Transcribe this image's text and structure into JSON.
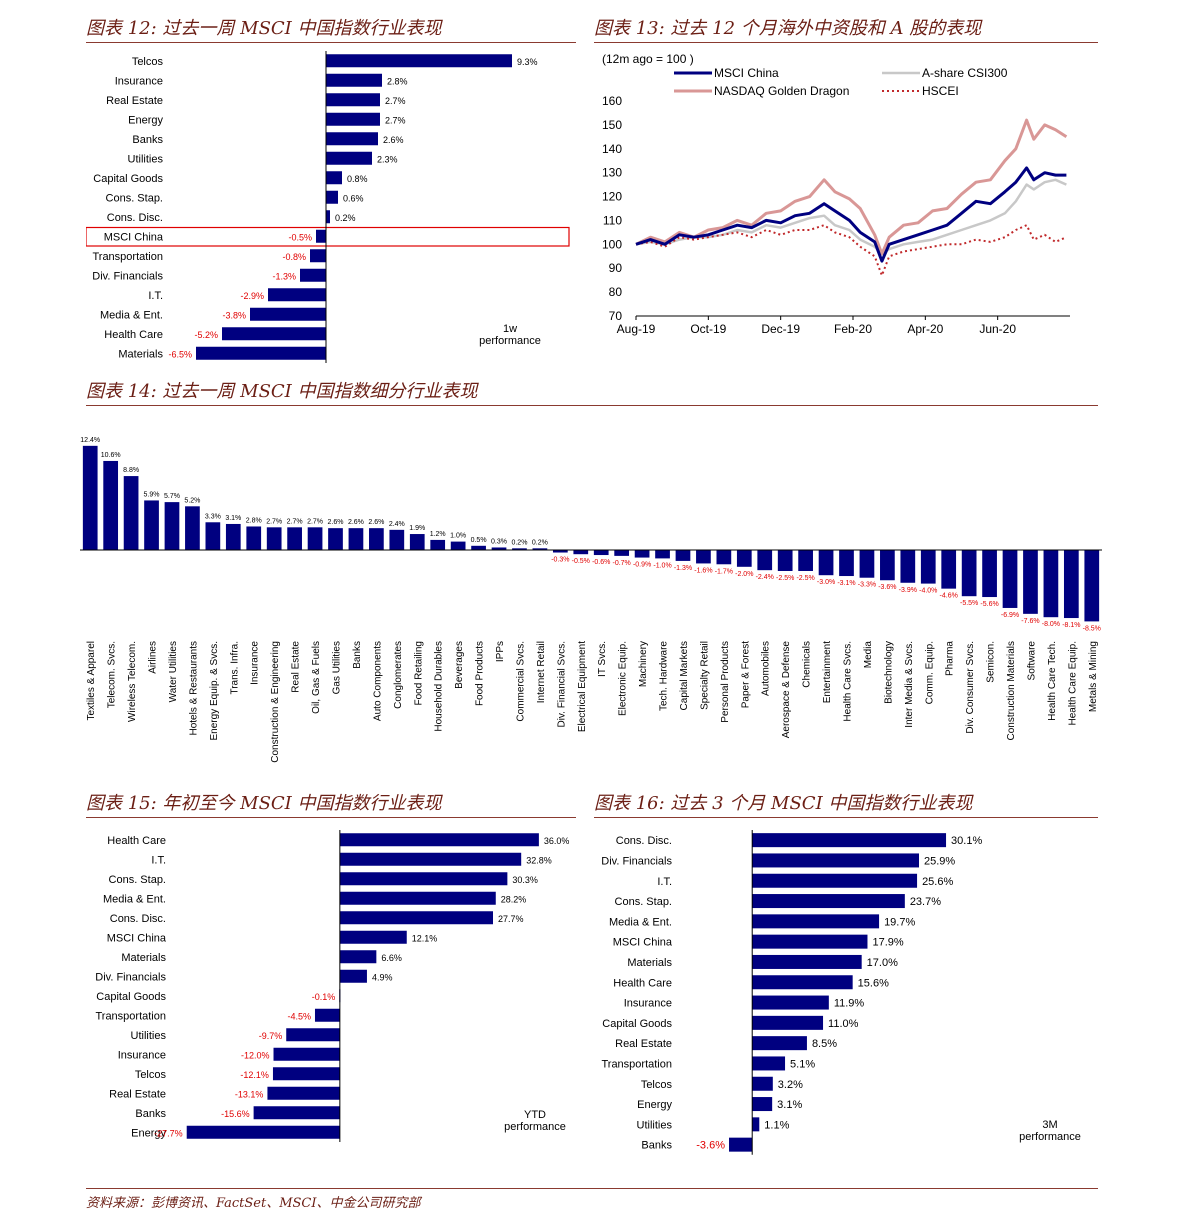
{
  "colors": {
    "bar": "#000080",
    "neg_label": "#e00000",
    "title": "#6b1e14",
    "highlight": "#e00000"
  },
  "titles": {
    "fig12": "图表 12:  过去一周 MSCI  中国指数行业表现",
    "fig13": "图表 13:  过去 12 个月海外中资股和 A 股的表现",
    "fig14": "图表 14:  过去一周 MSCI  中国指数细分行业表现",
    "fig15": "图表 15:  年初至今 MSCI  中国指数行业表现",
    "fig16": "图表 16:  过去 3 个月 MSCI  中国指数行业表现"
  },
  "footer": "资料来源：彭博资讯、FactSet、MSCI、中金公司研究部",
  "chart_data": [
    {
      "id": "fig12",
      "type": "bar",
      "orientation": "horizontal",
      "categories": [
        "Telcos",
        "Insurance",
        "Real Estate",
        "Energy",
        "Banks",
        "Utilities",
        "Capital Goods",
        "Cons. Stap.",
        "Cons. Disc.",
        "MSCI China",
        "Transportation",
        "Div. Financials",
        "I.T.",
        "Media & Ent.",
        "Health Care",
        "Materials"
      ],
      "values": [
        9.3,
        2.8,
        2.7,
        2.7,
        2.6,
        2.3,
        0.8,
        0.6,
        0.2,
        -0.5,
        -0.8,
        -1.3,
        -2.9,
        -3.8,
        -5.2,
        -6.5
      ],
      "labels": [
        "9.3%",
        "2.8%",
        "2.7%",
        "2.7%",
        "2.6%",
        "2.3%",
        "0.8%",
        "0.6%",
        "0.2%",
        "-0.5%",
        "-0.8%",
        "-1.3%",
        "-2.9%",
        "-3.8%",
        "-5.2%",
        "-6.5%"
      ],
      "highlight": "MSCI China",
      "note": [
        "1w",
        "performance"
      ],
      "xlim": [
        -7,
        10
      ]
    },
    {
      "id": "fig13",
      "type": "line",
      "unit_note": "(12m ago   = 100 )",
      "x_ticks": [
        "Aug-19",
        "Oct-19",
        "Dec-19",
        "Feb-20",
        "Apr-20",
        "Jun-20"
      ],
      "y_ticks": [
        70,
        80,
        90,
        100,
        110,
        120,
        130,
        140,
        150,
        160
      ],
      "ylim": [
        70,
        160
      ],
      "x_range_months": [
        0,
        12
      ],
      "series": [
        {
          "name": "MSCI China",
          "color": "#000080",
          "style": "solid",
          "width": 3,
          "points": [
            [
              0,
              100
            ],
            [
              0.4,
              102
            ],
            [
              0.8,
              100
            ],
            [
              1.2,
              104
            ],
            [
              1.6,
              103
            ],
            [
              2,
              104
            ],
            [
              2.4,
              106
            ],
            [
              2.8,
              108
            ],
            [
              3.2,
              107
            ],
            [
              3.6,
              110
            ],
            [
              4,
              109
            ],
            [
              4.4,
              112
            ],
            [
              4.8,
              113
            ],
            [
              5.2,
              117
            ],
            [
              5.5,
              114
            ],
            [
              5.9,
              110
            ],
            [
              6.2,
              105
            ],
            [
              6.6,
              101
            ],
            [
              6.8,
              93
            ],
            [
              7.0,
              100
            ],
            [
              7.4,
              102
            ],
            [
              7.8,
              104
            ],
            [
              8.2,
              106
            ],
            [
              8.6,
              108
            ],
            [
              9.0,
              113
            ],
            [
              9.4,
              118
            ],
            [
              9.8,
              117
            ],
            [
              10.2,
              122
            ],
            [
              10.5,
              126
            ],
            [
              10.8,
              132
            ],
            [
              11.0,
              127
            ],
            [
              11.3,
              130
            ],
            [
              11.6,
              129
            ],
            [
              11.9,
              129
            ]
          ]
        },
        {
          "name": "A-share CSI300",
          "color": "#c8c8c8",
          "style": "solid",
          "width": 2.5,
          "points": [
            [
              0,
              100
            ],
            [
              0.4,
              101
            ],
            [
              0.8,
              100
            ],
            [
              1.2,
              102
            ],
            [
              1.6,
              103
            ],
            [
              2,
              103
            ],
            [
              2.4,
              104
            ],
            [
              2.8,
              106
            ],
            [
              3.2,
              105
            ],
            [
              3.6,
              108
            ],
            [
              4,
              107
            ],
            [
              4.4,
              109
            ],
            [
              4.8,
              111
            ],
            [
              5.2,
              112
            ],
            [
              5.5,
              108
            ],
            [
              5.9,
              106
            ],
            [
              6.2,
              102
            ],
            [
              6.6,
              99
            ],
            [
              6.8,
              96
            ],
            [
              7.0,
              98
            ],
            [
              7.4,
              100
            ],
            [
              7.8,
              101
            ],
            [
              8.2,
              102
            ],
            [
              8.6,
              104
            ],
            [
              9.0,
              106
            ],
            [
              9.4,
              108
            ],
            [
              9.8,
              110
            ],
            [
              10.2,
              113
            ],
            [
              10.5,
              118
            ],
            [
              10.8,
              125
            ],
            [
              11.0,
              123
            ],
            [
              11.3,
              126
            ],
            [
              11.6,
              127
            ],
            [
              11.9,
              125
            ]
          ]
        },
        {
          "name": "NASDAQ Golden Dragon",
          "color": "#d99796",
          "style": "solid",
          "width": 3,
          "points": [
            [
              0,
              100
            ],
            [
              0.4,
              103
            ],
            [
              0.8,
              101
            ],
            [
              1.2,
              105
            ],
            [
              1.6,
              103
            ],
            [
              2,
              106
            ],
            [
              2.4,
              107
            ],
            [
              2.8,
              110
            ],
            [
              3.2,
              108
            ],
            [
              3.6,
              113
            ],
            [
              4,
              114
            ],
            [
              4.4,
              118
            ],
            [
              4.8,
              120
            ],
            [
              5.2,
              127
            ],
            [
              5.5,
              122
            ],
            [
              5.9,
              119
            ],
            [
              6.2,
              115
            ],
            [
              6.6,
              104
            ],
            [
              6.8,
              96
            ],
            [
              7.0,
              103
            ],
            [
              7.4,
              108
            ],
            [
              7.8,
              109
            ],
            [
              8.2,
              114
            ],
            [
              8.6,
              115
            ],
            [
              9.0,
              121
            ],
            [
              9.4,
              126
            ],
            [
              9.8,
              127
            ],
            [
              10.2,
              135
            ],
            [
              10.5,
              140
            ],
            [
              10.8,
              152
            ],
            [
              11.0,
              144
            ],
            [
              11.3,
              150
            ],
            [
              11.6,
              148
            ],
            [
              11.9,
              145
            ]
          ]
        },
        {
          "name": "HSCEI",
          "color": "#c0282a",
          "style": "dotted",
          "width": 2,
          "points": [
            [
              0,
              100
            ],
            [
              0.4,
              101
            ],
            [
              0.8,
              99
            ],
            [
              1.2,
              103
            ],
            [
              1.6,
              102
            ],
            [
              2,
              103
            ],
            [
              2.4,
              104
            ],
            [
              2.8,
              105
            ],
            [
              3.2,
              103
            ],
            [
              3.6,
              106
            ],
            [
              4,
              104
            ],
            [
              4.4,
              106
            ],
            [
              4.8,
              106
            ],
            [
              5.2,
              108
            ],
            [
              5.5,
              105
            ],
            [
              5.9,
              103
            ],
            [
              6.2,
              99
            ],
            [
              6.6,
              95
            ],
            [
              6.8,
              87
            ],
            [
              7.0,
              95
            ],
            [
              7.4,
              97
            ],
            [
              7.8,
              98
            ],
            [
              8.2,
              99
            ],
            [
              8.6,
              100
            ],
            [
              9.0,
              100
            ],
            [
              9.4,
              102
            ],
            [
              9.8,
              101
            ],
            [
              10.2,
              103
            ],
            [
              10.5,
              106
            ],
            [
              10.8,
              108
            ],
            [
              11.0,
              102
            ],
            [
              11.3,
              104
            ],
            [
              11.6,
              101
            ],
            [
              11.9,
              103
            ]
          ]
        }
      ]
    },
    {
      "id": "fig14",
      "type": "bar",
      "orientation": "vertical",
      "categories": [
        "Textiles & Apparel",
        "Telecom. Svcs.",
        "Wireless Telecom.",
        "Airlines",
        "Water Utilities",
        "Hotels & Restaurants",
        "Energy Equip. & Svcs.",
        "Trans. Infra.",
        "Insurance",
        "Construction & Engineering",
        "Real Estate",
        "Oil, Gas & Fuels",
        "Gas Utilities",
        "Banks",
        "Auto Components",
        "Conglomerates",
        "Food Retailing",
        "Household Durables",
        "Beverages",
        "Food Products",
        "IPPs",
        "Commercial Svcs.",
        "Internet Retail",
        "Div. Financial Svcs.",
        "Electrical Equipment",
        "IT Svcs.",
        "Electronic Equip.",
        "Machinery",
        "Tech. Hardware",
        "Capital Markets",
        "Specialty Retail",
        "Personal Products",
        "Paper & Forest",
        "Automobiles",
        "Aerospace & Defense",
        "Chemicals",
        "Entertainment",
        "Health Care Svcs.",
        "Media",
        "Biotechnology",
        "Inter Media & Svcs.",
        "Comm. Equip.",
        "Pharma",
        "Div. Consumer Svcs.",
        "Semicon.",
        "Construction Materials",
        "Software",
        "Health Care Tech.",
        "Health Care Equip.",
        "Metals & Mining"
      ],
      "values": [
        12.4,
        10.6,
        8.8,
        5.9,
        5.7,
        5.2,
        3.3,
        3.1,
        2.8,
        2.7,
        2.7,
        2.7,
        2.6,
        2.6,
        2.6,
        2.4,
        1.9,
        1.2,
        1.0,
        0.5,
        0.3,
        0.2,
        0.2,
        -0.3,
        -0.5,
        -0.6,
        -0.7,
        -0.9,
        -1.0,
        -1.3,
        -1.6,
        -1.7,
        -2.0,
        -2.4,
        -2.5,
        -2.5,
        -3.0,
        -3.1,
        -3.3,
        -3.6,
        -3.9,
        -4.0,
        -4.6,
        -5.5,
        -5.6,
        -6.9,
        -7.6,
        -8.0,
        -8.1,
        -8.5
      ],
      "labels": [
        "12.4%",
        "10.6%",
        "8.8%",
        "5.9%",
        "5.7%",
        "5.2%",
        "3.3%",
        "3.1%",
        "2.8%",
        "2.7%",
        "2.7%",
        "2.7%",
        "2.6%",
        "2.6%",
        "2.6%",
        "2.4%",
        "1.9%",
        "1.2%",
        "1.0%",
        "0.5%",
        "0.3%",
        "0.2%",
        "0.2%",
        "-0.3%",
        "-0.5%",
        "-0.6%",
        "-0.7%",
        "-0.9%",
        "-1.0%",
        "-1.3%",
        "-1.6%",
        "-1.7%",
        "-2.0%",
        "-2.4%",
        "-2.5%",
        "-2.5%",
        "-3.0%",
        "-3.1%",
        "-3.3%",
        "-3.6%",
        "-3.9%",
        "-4.0%",
        "-4.6%",
        "-5.5%",
        "-5.6%",
        "-6.9%",
        "-7.6%",
        "-8.0%",
        "-8.1%",
        "-8.5%"
      ],
      "ylim": [
        -9,
        13
      ]
    },
    {
      "id": "fig15",
      "type": "bar",
      "orientation": "horizontal",
      "categories": [
        "Health Care",
        "I.T.",
        "Cons. Stap.",
        "Media & Ent.",
        "Cons. Disc.",
        "MSCI China",
        "Materials",
        "Div. Financials",
        "Capital Goods",
        "Transportation",
        "Utilities",
        "Insurance",
        "Telcos",
        "Real Estate",
        "Banks",
        "Energy"
      ],
      "values": [
        36.0,
        32.8,
        30.3,
        28.2,
        27.7,
        12.1,
        6.6,
        4.9,
        -0.1,
        -4.5,
        -9.7,
        -12.0,
        -12.1,
        -13.1,
        -15.6,
        -27.7
      ],
      "labels": [
        "36.0%",
        "32.8%",
        "30.3%",
        "28.2%",
        "27.7%",
        "12.1%",
        "6.6%",
        "4.9%",
        "-0.1%",
        "-4.5%",
        "-9.7%",
        "-12.0%",
        "-12.1%",
        "-13.1%",
        "-15.6%",
        "-27.7%"
      ],
      "note": [
        "YTD",
        "performance"
      ],
      "xlim": [
        -30,
        40
      ]
    },
    {
      "id": "fig16",
      "type": "bar",
      "orientation": "horizontal",
      "categories": [
        "Cons. Disc.",
        "Div. Financials",
        "I.T.",
        "Cons. Stap.",
        "Media & Ent.",
        "MSCI China",
        "Materials",
        "Health Care",
        "Insurance",
        "Capital Goods",
        "Real Estate",
        "Transportation",
        "Telcos",
        "Energy",
        "Utilities",
        "Banks"
      ],
      "values": [
        30.1,
        25.9,
        25.6,
        23.7,
        19.7,
        17.9,
        17.0,
        15.6,
        11.9,
        11.0,
        8.5,
        5.1,
        3.2,
        3.1,
        1.1,
        -3.6
      ],
      "labels": [
        "30.1%",
        "25.9%",
        "25.6%",
        "23.7%",
        "19.7%",
        "17.9%",
        "17.0%",
        "15.6%",
        "11.9%",
        "11.0%",
        "8.5%",
        "5.1%",
        "3.2%",
        "3.1%",
        "1.1%",
        "-3.6%"
      ],
      "note": [
        "3M",
        "performance"
      ],
      "xlim": [
        -5,
        45
      ]
    }
  ]
}
